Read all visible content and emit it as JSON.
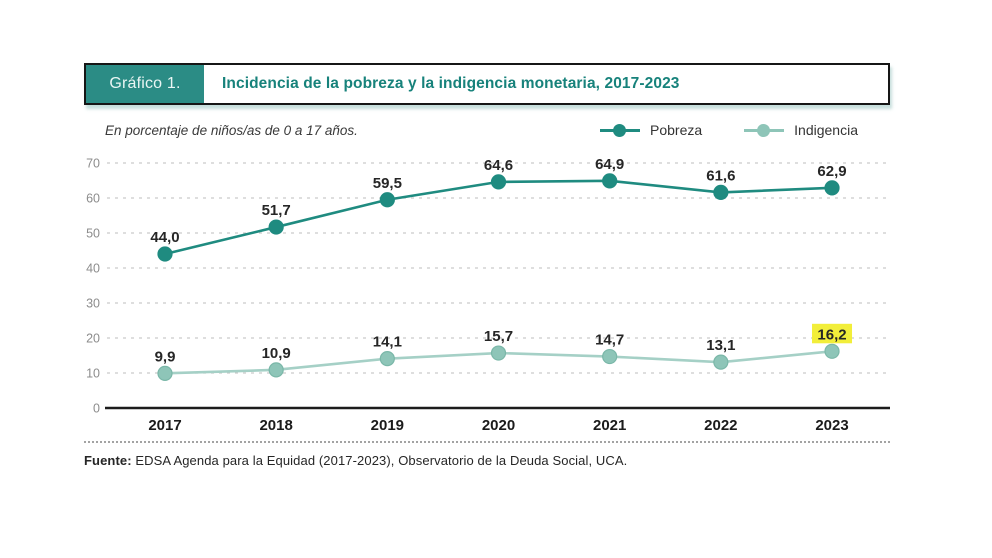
{
  "header": {
    "tag": "Gráfico 1.",
    "title": "Incidencia de la pobreza y la indigencia monetaria, 2017-2023"
  },
  "subtitle": "En porcentaje de niños/as de 0 a 17 años.",
  "legend": [
    {
      "label": "Pobreza",
      "color": "#1f8b80"
    },
    {
      "label": "Indigencia",
      "color": "#8ec5b8"
    }
  ],
  "colors": {
    "header_tag_bg": "#2b8c85",
    "header_title_text": "#17827b",
    "pobreza": "#1f8b80",
    "indigencia_line": "#a5d0c6",
    "indigencia_marker": "#8ec5b8",
    "indigencia_marker_edge": "#7ab7a8",
    "highlight": "#f2ee3a",
    "gridline": "#c9c9c9",
    "axis": "#1c1c1c"
  },
  "chart_data": {
    "type": "line",
    "title": "Incidencia de la pobreza y la indigencia monetaria, 2017-2023",
    "subtitle": "En porcentaje de niños/as de 0 a 17 años.",
    "categories": [
      "2017",
      "2018",
      "2019",
      "2020",
      "2021",
      "2022",
      "2023"
    ],
    "series": [
      {
        "name": "Pobreza",
        "color": "#1f8b80",
        "marker_fill": "#1f8b80",
        "marker_edge": "#1f8b80",
        "values": [
          44.0,
          51.7,
          59.5,
          64.6,
          64.9,
          61.6,
          62.9
        ],
        "labels": [
          "44,0",
          "51,7",
          "59,5",
          "64,6",
          "64,9",
          "61,6",
          "62,9"
        ],
        "highlight_index": -1
      },
      {
        "name": "Indigencia",
        "color": "#a5d0c6",
        "marker_fill": "#8ec5b8",
        "marker_edge": "#7ab7a8",
        "values": [
          9.9,
          10.9,
          14.1,
          15.7,
          14.7,
          13.1,
          16.2
        ],
        "labels": [
          "9,9",
          "10,9",
          "14,1",
          "15,7",
          "14,7",
          "13,1",
          "16,2"
        ],
        "highlight_index": 6
      }
    ],
    "yticks": [
      0,
      10,
      20,
      30,
      40,
      50,
      60,
      70
    ],
    "ylim": [
      0,
      70
    ],
    "grid": "horizontal-dashed",
    "legend_position": "top-right"
  },
  "footer": {
    "source_label": "Fuente:",
    "source_text": "EDSA Agenda para la Equidad (2017-2023), Observatorio de la Deuda Social, UCA."
  }
}
